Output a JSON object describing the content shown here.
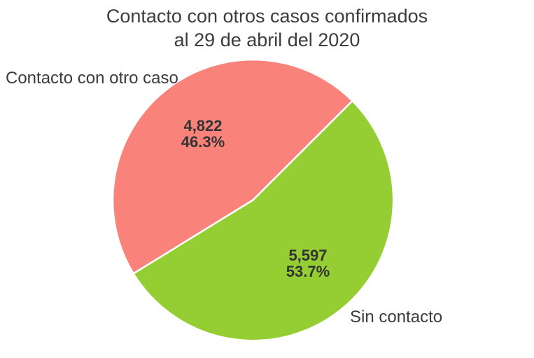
{
  "header": {
    "title_line1": "Contacto con otros casos confirmados",
    "title_line2": "al 29 de abril del 2020"
  },
  "chart_data": {
    "type": "pie",
    "title": "Contacto con otros casos confirmados al 29 de abril del 2020",
    "slices": [
      {
        "label": "Contacto con otro caso",
        "value": 4822,
        "value_label": "4,822",
        "pct": 46.3,
        "pct_label": "46.3%",
        "color": "#F9837A"
      },
      {
        "label": "Sin contacto",
        "value": 5597,
        "value_label": "5,597",
        "pct": 53.7,
        "pct_label": "53.7%",
        "color": "#95CE32"
      }
    ],
    "start_angle_deg": 44.9,
    "direction": "counterclockwise",
    "slice_border_color": "#FFFFFF",
    "labels": "value and percent inside slices, category names outside",
    "legend": "none",
    "background": "#FFFFFF",
    "text_color": "#3C3C3C"
  }
}
